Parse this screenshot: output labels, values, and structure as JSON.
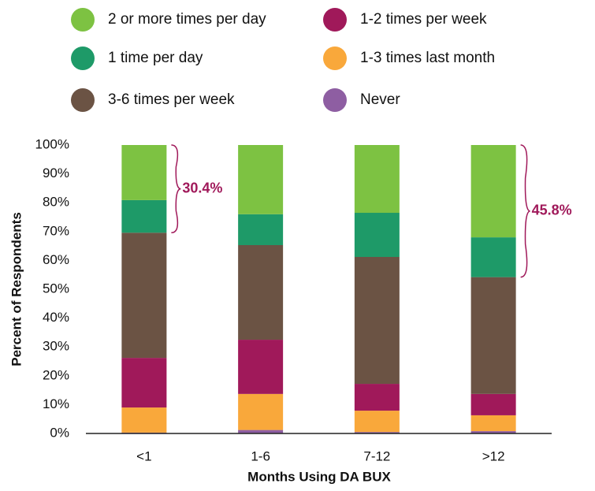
{
  "chart_data": {
    "type": "stacked_bar",
    "xlabel": "Months Using DA BUX",
    "ylabel": "Percent of Respondents",
    "categories": [
      "<1",
      "1-6",
      "7-12",
      ">12"
    ],
    "series": [
      {
        "name": "Never",
        "color": "#8e5ea2",
        "values": [
          0.3,
          1.2,
          0.5,
          0.8
        ]
      },
      {
        "name": "1-3 times last month",
        "color": "#f9a83b",
        "values": [
          8.7,
          12.5,
          7.4,
          5.5
        ]
      },
      {
        "name": "1-2 times per week",
        "color": "#a0195a",
        "values": [
          17.2,
          18.8,
          9.3,
          7.4
        ]
      },
      {
        "name": "3-6 times per week",
        "color": "#6b5344",
        "values": [
          43.4,
          32.8,
          44.0,
          40.5
        ]
      },
      {
        "name": "1 time per day",
        "color": "#1e9a68",
        "values": [
          11.3,
          10.7,
          15.3,
          13.8
        ]
      },
      {
        "name": "2 or more times per day",
        "color": "#7dc242",
        "values": [
          19.1,
          24.0,
          23.5,
          32.0
        ]
      }
    ],
    "ylim": [
      0,
      100
    ],
    "yticks": [
      {
        "value": 0,
        "label": "0%"
      },
      {
        "value": 10,
        "label": "10%"
      },
      {
        "value": 20,
        "label": "20%"
      },
      {
        "value": 30,
        "label": "30%"
      },
      {
        "value": 40,
        "label": "40%"
      },
      {
        "value": 50,
        "label": "50%"
      },
      {
        "value": 60,
        "label": "60%"
      },
      {
        "value": 70,
        "label": "70%"
      },
      {
        "value": 80,
        "label": "80%"
      },
      {
        "value": 90,
        "label": "90%"
      },
      {
        "value": 100,
        "label": "100%"
      }
    ],
    "annotations": [
      "30.4%",
      "45.8%"
    ]
  }
}
